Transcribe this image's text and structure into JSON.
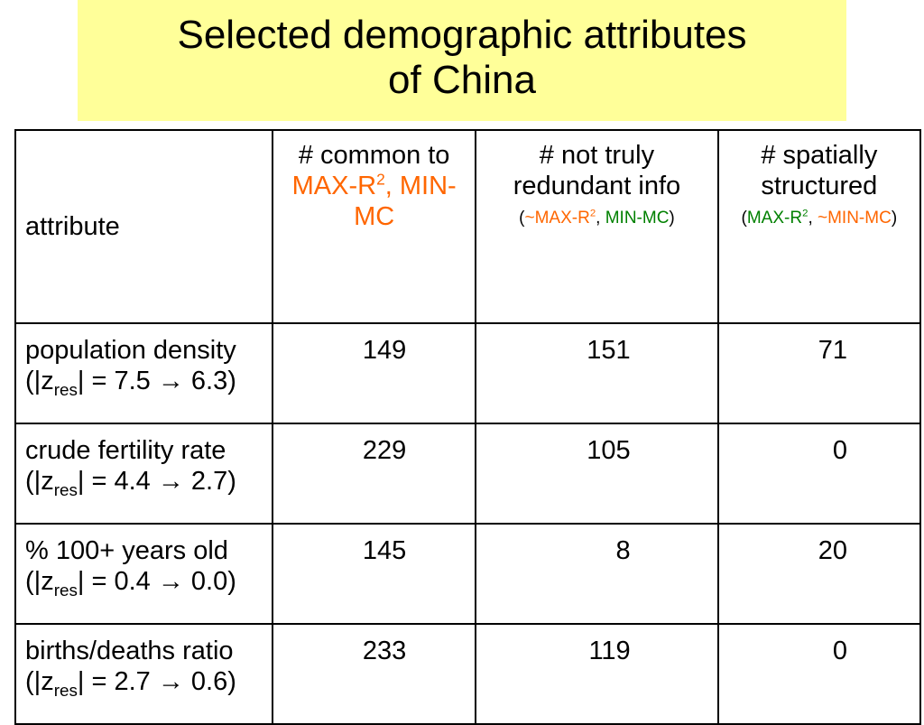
{
  "title": {
    "line1": "Selected demographic attributes",
    "line2": "of China"
  },
  "table": {
    "headers": {
      "attribute": "attribute",
      "common": {
        "prefix": "# common to ",
        "max": "MAX-R",
        "sup": "2",
        "mid": ", MIN-MC"
      },
      "not_redundant": {
        "main": "# not truly redundant info",
        "open": "(",
        "max": "~MAX-R",
        "sup": "2",
        "sep": ", ",
        "min": "MIN-MC",
        "close": ")"
      },
      "spatial": {
        "main": "# spatially structured",
        "open": "(",
        "max": "MAX-R",
        "sup": "2",
        "sep": ", ",
        "min": "~MIN-MC",
        "close": ")"
      }
    },
    "rows": [
      {
        "name": "population density",
        "z_open": "(|z",
        "z_sub": "res",
        "z_close": "| = 7.5 → 6.3)",
        "common": "149",
        "not_redundant": "151",
        "spatial": "71"
      },
      {
        "name": "crude fertility rate",
        "z_open": "(|z",
        "z_sub": "res",
        "z_close": "| = 4.4 → 2.7)",
        "common": "229",
        "not_redundant": "105",
        "spatial": "0"
      },
      {
        "name": "% 100+ years old",
        "z_open": "(|z",
        "z_sub": "res",
        "z_close": "| = 0.4 → 0.0)",
        "common": "145",
        "not_redundant": "8",
        "spatial": "20"
      },
      {
        "name": "births/deaths ratio",
        "z_open": "(|z",
        "z_sub": "res",
        "z_close": "| = 2.7 → 0.6)",
        "common": "233",
        "not_redundant": "119",
        "spatial": "0"
      }
    ]
  }
}
